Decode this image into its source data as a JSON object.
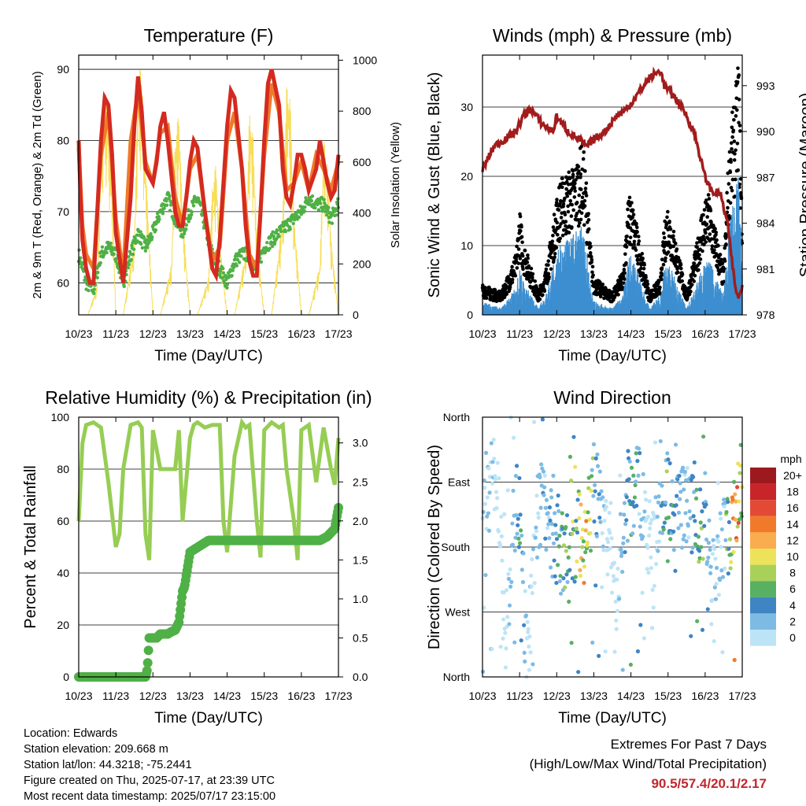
{
  "station": {
    "location": "Location: Edwards",
    "elevation": "Station elevation: 209.668 m",
    "latlon": "Station lat/lon: 44.3218; -75.2441",
    "created": "Figure created on Thu, 2025-07-17, at 23:39 UTC",
    "timestamp": "Most recent data timestamp: 2025/07/17 23:15:00"
  },
  "extremes": {
    "title": "Extremes For Past 7 Days",
    "subtitle": "(High/Low/Max Wind/Total Precipitation)",
    "values": "90.5/57.4/20.1/2.17",
    "color": "#c0272d"
  },
  "colors": {
    "temp_2m": "#d42a1f",
    "temp_9m": "#f07a2a",
    "dewpoint": "#4fb046",
    "solar": "#f7de5a",
    "wind": "#3d8fd0",
    "gust": "#000000",
    "pressure": "#a11c1c",
    "rh": "#96cd54",
    "precip": "#4fb046"
  },
  "chart_data": [
    {
      "type": "line",
      "title": "Temperature (F)",
      "xlabel": "Time (Day/UTC)",
      "ylabel": "2m & 9m T (Red, Orange) & 2m Td (Green)",
      "y2label": "Solar Insolation (Yellow)",
      "xticks": [
        "10/23",
        "11/23",
        "12/23",
        "13/23",
        "14/23",
        "15/23",
        "16/23",
        "17/23"
      ],
      "xlim": [
        0,
        7
      ],
      "ylim": [
        55.5,
        92
      ],
      "yticks": [
        60,
        70,
        80,
        90
      ],
      "y2lim": [
        0,
        1020
      ],
      "y2ticks": [
        0,
        200,
        400,
        600,
        800,
        1000
      ],
      "grid": true,
      "series": [
        {
          "name": "2m T",
          "x": [
            0,
            0.05,
            0.1,
            0.2,
            0.3,
            0.4,
            0.5,
            0.6,
            0.7,
            0.8,
            0.9,
            1.0,
            1.2,
            1.4,
            1.5,
            1.6,
            1.7,
            1.8,
            1.9,
            2.0,
            2.1,
            2.2,
            2.3,
            2.4,
            2.5,
            2.6,
            2.7,
            2.8,
            2.9,
            3.0,
            3.1,
            3.2,
            3.4,
            3.5,
            3.6,
            3.7,
            3.8,
            3.9,
            4.0,
            4.1,
            4.2,
            4.4,
            4.5,
            4.6,
            4.7,
            4.8,
            4.9,
            5.0,
            5.1,
            5.2,
            5.4,
            5.5,
            5.6,
            5.7,
            5.8,
            5.9,
            6.0,
            6.1,
            6.2,
            6.4,
            6.5,
            6.6,
            6.7,
            6.8,
            6.9,
            7.0
          ],
          "y": [
            80,
            72,
            66,
            62,
            60,
            60,
            70,
            80,
            86,
            85,
            78,
            67,
            60,
            72,
            82,
            89,
            84,
            76,
            75,
            74,
            77,
            82,
            84,
            80,
            75,
            70,
            68,
            68,
            72,
            77,
            80,
            79,
            70,
            66,
            62,
            61,
            66,
            74,
            82,
            87,
            86,
            76,
            68,
            63,
            61,
            61,
            70,
            80,
            88,
            90,
            85,
            76,
            72,
            71,
            74,
            78,
            78,
            76,
            73,
            76,
            80,
            77,
            74,
            72,
            73,
            78
          ]
        },
        {
          "name": "9m T",
          "x": [
            0,
            0.1,
            0.2,
            0.4,
            0.6,
            0.8,
            1.0,
            1.2,
            1.4,
            1.6,
            1.8,
            2.0,
            2.2,
            2.4,
            2.6,
            2.8,
            3.0,
            3.2,
            3.4,
            3.6,
            3.8,
            4.0,
            4.2,
            4.4,
            4.6,
            4.8,
            5.0,
            5.2,
            5.4,
            5.6,
            5.8,
            6.0,
            6.2,
            6.4,
            6.6,
            6.8,
            7.0
          ],
          "y": [
            79,
            68,
            64,
            62,
            78,
            84,
            69,
            61,
            80,
            87,
            77,
            74,
            81,
            82,
            72,
            68,
            76,
            78,
            70,
            63,
            65,
            80,
            84,
            76,
            64,
            62,
            78,
            88,
            84,
            73,
            74,
            77,
            73,
            78,
            76,
            73,
            77
          ]
        },
        {
          "name": "2m Td",
          "x": [
            0,
            0.2,
            0.4,
            0.6,
            0.8,
            1.0,
            1.2,
            1.4,
            1.6,
            1.8,
            2.0,
            2.2,
            2.4,
            2.6,
            2.8,
            3.0,
            3.2,
            3.4,
            3.6,
            3.8,
            4.0,
            4.2,
            4.4,
            4.6,
            4.8,
            5.0,
            5.2,
            5.4,
            5.6,
            5.8,
            6.0,
            6.2,
            6.4,
            6.6,
            6.8,
            7.0
          ],
          "y": [
            64,
            60,
            59,
            64,
            65,
            64,
            60,
            64,
            67,
            65,
            67,
            70,
            72,
            69,
            67,
            70,
            72,
            68,
            64,
            62,
            60,
            63,
            64,
            64,
            62,
            65,
            66,
            67,
            68,
            69,
            70,
            72,
            71,
            71,
            69,
            71
          ]
        },
        {
          "name": "Solar",
          "x": [
            0,
            0.25,
            0.5,
            0.6,
            0.7,
            0.8,
            0.9,
            1.0,
            1.2,
            1.5,
            1.6,
            1.7,
            1.8,
            2.0,
            2.2,
            2.5,
            2.6,
            2.7,
            2.8,
            3.0,
            3.2,
            3.5,
            3.6,
            3.7,
            3.8,
            4.0,
            4.2,
            4.5,
            4.6,
            4.7,
            4.8,
            5.0,
            5.2,
            5.5,
            5.6,
            5.7,
            5.8,
            6.0,
            6.2,
            6.5,
            6.6,
            6.7,
            6.8,
            7.0
          ],
          "y": [
            0,
            0,
            120,
            700,
            900,
            800,
            500,
            0,
            0,
            300,
            950,
            980,
            600,
            0,
            0,
            200,
            700,
            800,
            400,
            0,
            0,
            150,
            500,
            600,
            300,
            0,
            0,
            250,
            800,
            700,
            300,
            0,
            0,
            400,
            900,
            850,
            400,
            0,
            0,
            200,
            700,
            600,
            300,
            0
          ]
        }
      ]
    },
    {
      "type": "scatter",
      "title": "Winds (mph) & Pressure (mb)",
      "xlabel": "Time (Day/UTC)",
      "ylabel": "Sonic Wind & Gust (Blue, Black)",
      "y2label": "Station Pressure (Maroon)",
      "xticks": [
        "10/23",
        "11/23",
        "12/23",
        "13/23",
        "14/23",
        "15/23",
        "16/23",
        "17/23"
      ],
      "xlim": [
        0,
        7
      ],
      "ylim": [
        0,
        37.5
      ],
      "yticks": [
        0,
        10,
        20,
        30
      ],
      "y2lim": [
        978,
        995
      ],
      "y2ticks": [
        978,
        981,
        984,
        987,
        990,
        993
      ],
      "grid": true,
      "series": [
        {
          "name": "Gust",
          "x": [
            0,
            0.5,
            0.9,
            1.0,
            1.1,
            1.5,
            1.7,
            1.9,
            2.0,
            2.1,
            2.5,
            2.7,
            2.8,
            2.9,
            3.0,
            3.5,
            3.8,
            3.9,
            4.0,
            4.5,
            4.8,
            4.9,
            5.0,
            5.5,
            5.8,
            5.9,
            6.1,
            6.5,
            6.6,
            6.7,
            6.8,
            6.9,
            7.0
          ],
          "y": [
            4,
            3,
            8,
            14,
            10,
            3,
            6,
            12,
            16,
            18,
            20,
            23,
            18,
            10,
            5,
            3,
            6,
            15,
            16,
            3,
            5,
            12,
            15,
            3,
            10,
            14,
            16,
            6,
            18,
            26,
            28,
            35,
            12
          ]
        },
        {
          "name": "Wind",
          "x": [
            0,
            0.5,
            0.9,
            1.0,
            1.1,
            1.5,
            1.7,
            1.9,
            2.0,
            2.1,
            2.5,
            2.7,
            2.8,
            2.9,
            3.0,
            3.5,
            3.8,
            3.9,
            4.0,
            4.5,
            4.8,
            4.9,
            5.0,
            5.5,
            5.8,
            5.9,
            6.1,
            6.5,
            6.6,
            6.7,
            6.8,
            6.9,
            7.0
          ],
          "y": [
            2,
            1,
            4,
            7,
            5,
            1,
            3,
            7,
            9,
            10,
            12,
            13,
            10,
            5,
            2,
            1,
            3,
            8,
            9,
            1,
            3,
            7,
            8,
            1,
            5,
            7,
            8,
            3,
            10,
            15,
            18,
            20,
            8
          ]
        },
        {
          "name": "Pressure",
          "x": [
            0,
            0.3,
            0.6,
            0.9,
            1.1,
            1.3,
            1.6,
            1.9,
            2.0,
            2.3,
            2.6,
            2.8,
            3.0,
            3.3,
            3.6,
            3.9,
            4.2,
            4.5,
            4.8,
            4.9,
            5.1,
            5.4,
            5.7,
            6.0,
            6.2,
            6.4,
            6.6,
            6.7,
            6.8,
            6.9,
            7.0
          ],
          "y": [
            987.5,
            989,
            989.5,
            990,
            991,
            991.5,
            990.5,
            990,
            991,
            990,
            989.5,
            989,
            989.5,
            990,
            991,
            991.5,
            992.5,
            993.5,
            994,
            993,
            992.5,
            991.5,
            990,
            987,
            986,
            986,
            984,
            982,
            980,
            979,
            980
          ]
        }
      ]
    },
    {
      "type": "line",
      "title": "Relative Humidity (%) & Precipitation (in)",
      "xlabel": "Time (Day/UTC)",
      "ylabel": "Percent & Total Rainfall",
      "xticks": [
        "10/23",
        "11/23",
        "12/23",
        "13/23",
        "14/23",
        "15/23",
        "16/23",
        "17/23"
      ],
      "xlim": [
        0,
        7
      ],
      "ylim": [
        0,
        100
      ],
      "yticks": [
        0,
        20,
        40,
        60,
        80,
        100
      ],
      "y2lim": [
        0,
        3.33
      ],
      "y2ticks": [
        "0.0",
        "0.5",
        "1.0",
        "1.5",
        "2.0",
        "2.5",
        "3.0"
      ],
      "grid": true,
      "series": [
        {
          "name": "RH",
          "x": [
            0,
            0.1,
            0.2,
            0.4,
            0.5,
            0.6,
            0.8,
            1.0,
            1.1,
            1.2,
            1.4,
            1.6,
            1.7,
            1.8,
            1.9,
            2.0,
            2.2,
            2.4,
            2.6,
            2.7,
            2.8,
            3.0,
            3.1,
            3.2,
            3.4,
            3.6,
            3.8,
            3.9,
            4.0,
            4.2,
            4.4,
            4.5,
            4.6,
            4.8,
            4.9,
            5.0,
            5.2,
            5.4,
            5.5,
            5.6,
            5.8,
            5.9,
            6.0,
            6.2,
            6.4,
            6.6,
            6.8,
            6.9,
            7.0
          ],
          "y": [
            60,
            90,
            97,
            98,
            97,
            96,
            75,
            50,
            55,
            80,
            97,
            98,
            96,
            55,
            45,
            95,
            80,
            80,
            80,
            95,
            60,
            92,
            97,
            98,
            96,
            97,
            97,
            60,
            48,
            85,
            98,
            96,
            97,
            60,
            46,
            95,
            98,
            96,
            97,
            80,
            60,
            45,
            95,
            97,
            75,
            96,
            80,
            74,
            92
          ]
        },
        {
          "name": "Total Rainfall",
          "x": [
            0,
            0.5,
            1.0,
            1.2,
            1.3,
            1.5,
            1.7,
            1.8,
            1.85,
            1.9,
            2.1,
            2.2,
            2.4,
            2.5,
            2.6,
            2.7,
            2.75,
            2.8,
            2.85,
            2.9,
            3.0,
            3.5,
            4.0,
            5.0,
            6.0,
            6.5,
            6.7,
            6.9,
            7.0
          ],
          "y": [
            0,
            0,
            0,
            0,
            0,
            0,
            0,
            0,
            0.1,
            0.5,
            0.5,
            0.55,
            0.55,
            0.58,
            0.6,
            0.7,
            0.9,
            1.1,
            1.15,
            1.3,
            1.6,
            1.75,
            1.75,
            1.75,
            1.75,
            1.75,
            1.8,
            1.9,
            2.17
          ]
        }
      ]
    },
    {
      "type": "scatter",
      "title": "Wind Direction",
      "xlabel": "Time (Day/UTC)",
      "ylabel": "Direction (Colored By Speed)",
      "xticks": [
        "10/23",
        "11/23",
        "12/23",
        "13/23",
        "14/23",
        "15/23",
        "16/23",
        "17/23"
      ],
      "xlim": [
        0,
        7
      ],
      "ylim": [
        0,
        360
      ],
      "yticklabels": [
        "North",
        "East",
        "South",
        "West",
        "North"
      ],
      "legend": {
        "title": "mph",
        "labels": [
          "20+",
          "18",
          "16",
          "14",
          "12",
          "10",
          "8",
          "6",
          "4",
          "2",
          "0"
        ],
        "colors": [
          "#9c1a1e",
          "#c8252a",
          "#e24a35",
          "#f07a2a",
          "#f9ad4e",
          "#ece35a",
          "#a9d15a",
          "#58b063",
          "#3f85c4",
          "#7dbbe5",
          "#bde4f6"
        ]
      },
      "grid": true,
      "series": [
        {
          "name": "Direction",
          "x": [
            0.1,
            0.3,
            0.5,
            0.6,
            0.9,
            1.0,
            1.2,
            1.5,
            1.6,
            1.9,
            2.0,
            2.2,
            2.4,
            2.6,
            2.7,
            2.8,
            3.0,
            3.3,
            3.5,
            3.6,
            3.9,
            4.0,
            4.2,
            4.4,
            4.6,
            4.9,
            5.0,
            5.2,
            5.5,
            5.7,
            5.9,
            6.0,
            6.2,
            6.5,
            6.6,
            6.7,
            6.8,
            6.9,
            7.0
          ],
          "y": [
            250,
            280,
            200,
            30,
            280,
            220,
            20,
            230,
            250,
            190,
            200,
            170,
            160,
            200,
            190,
            180,
            270,
            210,
            150,
            120,
            260,
            240,
            280,
            200,
            170,
            260,
            250,
            220,
            240,
            220,
            200,
            230,
            150,
            190,
            200,
            210,
            230,
            250,
            270
          ],
          "speed": [
            3,
            2,
            1,
            1,
            5,
            7,
            2,
            3,
            5,
            4,
            6,
            8,
            9,
            11,
            13,
            15,
            7,
            2,
            1,
            1,
            6,
            8,
            5,
            2,
            1,
            7,
            8,
            5,
            3,
            6,
            9,
            5,
            2,
            3,
            10,
            13,
            15,
            18,
            12
          ]
        }
      ]
    }
  ]
}
